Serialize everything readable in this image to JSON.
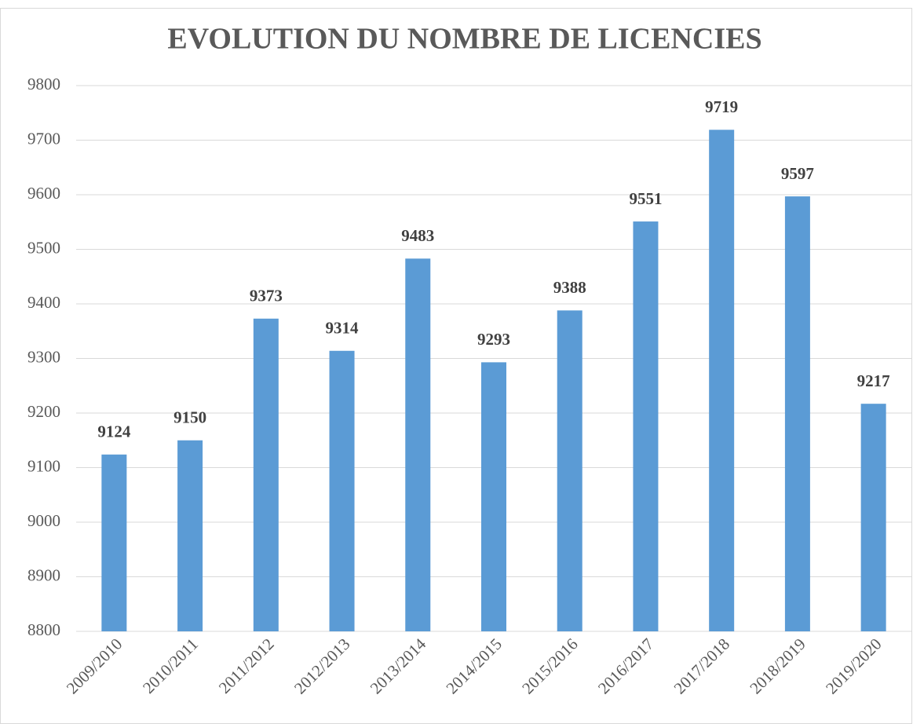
{
  "chart_data": {
    "type": "bar",
    "title": "EVOLUTION DU NOMBRE DE LICENCIES",
    "categories": [
      "2009/2010",
      "2010/2011",
      "2011/2012",
      "2012/2013",
      "2013/2014",
      "2014/2015",
      "2015/2016",
      "2016/2017",
      "2017/2018",
      "2018/2019",
      "2019/2020"
    ],
    "values": [
      9124,
      9150,
      9373,
      9314,
      9483,
      9293,
      9388,
      9551,
      9719,
      9597,
      9217
    ],
    "color": "#5b9bd5",
    "ylim": [
      8800,
      9800
    ],
    "yticks": [
      8800,
      8900,
      9000,
      9100,
      9200,
      9300,
      9400,
      9500,
      9600,
      9700,
      9800
    ],
    "grid": true
  }
}
